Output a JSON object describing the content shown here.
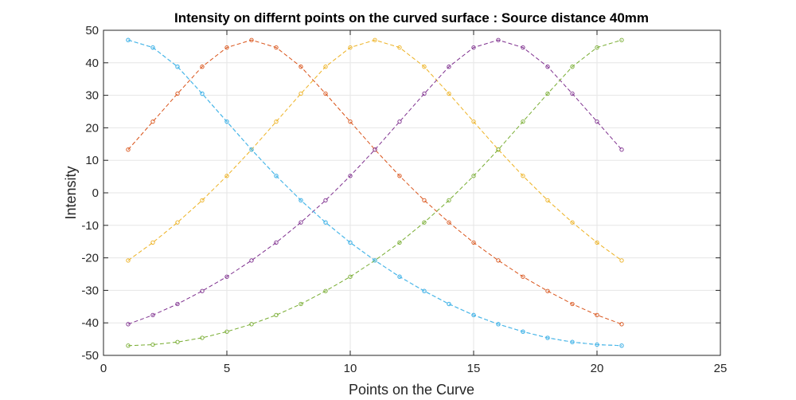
{
  "chart_data": {
    "type": "line",
    "title": "Intensity on differnt points on the curved surface : Source distance 40mm",
    "xlabel": "Points on the Curve",
    "ylabel": "Intensity",
    "xlim": [
      0,
      25
    ],
    "ylim": [
      -50,
      50
    ],
    "xticks": [
      "0",
      "5",
      "10",
      "15",
      "20",
      "25"
    ],
    "yticks": [
      "50",
      "40",
      "30",
      "20",
      "10",
      "0",
      "-10",
      "-20",
      "-30",
      "-40",
      "-50"
    ],
    "grid": true,
    "legend": "none",
    "x": [
      1,
      2,
      3,
      4,
      5,
      6,
      7,
      8,
      9,
      10,
      11,
      12,
      13,
      14,
      15,
      16,
      17,
      18,
      19,
      20,
      21
    ],
    "series": [
      {
        "color": "#0072BD",
        "line": "dashed",
        "marker": "circle",
        "values": [
          47,
          44.7,
          38.8,
          30.5,
          21.9,
          13.3,
          5.2,
          -2.3,
          -9.1,
          -15.3,
          -20.8,
          -25.8,
          -30.2,
          -34.2,
          -37.6,
          -40.4,
          -42.7,
          -44.6,
          -45.9,
          -46.7,
          -47
        ]
      },
      {
        "color": "#D95319",
        "line": "dashed",
        "marker": "circle",
        "values": [
          13.3,
          21.9,
          30.5,
          38.8,
          44.7,
          47,
          44.7,
          38.8,
          30.5,
          21.9,
          13.3,
          5.2,
          -2.3,
          -9.1,
          -15.3,
          -20.8,
          -25.8,
          -30.2,
          -34.2,
          -37.6,
          -40.4
        ]
      },
      {
        "color": "#EDB120",
        "line": "dashed",
        "marker": "circle",
        "values": [
          -20.8,
          -15.3,
          -9.1,
          -2.3,
          5.2,
          13.3,
          21.9,
          30.5,
          38.8,
          44.7,
          47,
          44.7,
          38.8,
          30.5,
          21.9,
          13.3,
          5.2,
          -2.3,
          -9.1,
          -15.3,
          -20.8
        ]
      },
      {
        "color": "#7E2F8E",
        "line": "dashed",
        "marker": "circle",
        "values": [
          -40.4,
          -37.6,
          -34.2,
          -30.2,
          -25.8,
          -20.8,
          -15.3,
          -9.1,
          -2.3,
          5.2,
          13.3,
          21.9,
          30.5,
          38.8,
          44.7,
          47,
          44.7,
          38.8,
          30.5,
          21.9,
          13.3
        ]
      },
      {
        "color": "#77AC30",
        "line": "dashed",
        "marker": "circle",
        "values": [
          -47,
          -46.7,
          -45.9,
          -44.6,
          -42.7,
          -40.4,
          -37.6,
          -34.2,
          -30.2,
          -25.8,
          -20.8,
          -15.3,
          -9.1,
          -2.3,
          5.2,
          13.3,
          21.9,
          30.5,
          38.8,
          44.7,
          47
        ]
      },
      {
        "color": "#4DBEEE",
        "line": "dashed",
        "marker": "circle",
        "values": [
          47,
          44.7,
          38.8,
          30.5,
          21.9,
          13.3,
          5.2,
          -2.3,
          -9.1,
          -15.3,
          -20.8,
          -25.8,
          -30.2,
          -34.2,
          -37.6,
          -40.4,
          -42.7,
          -44.6,
          -45.9,
          -46.7,
          -47
        ]
      }
    ]
  }
}
